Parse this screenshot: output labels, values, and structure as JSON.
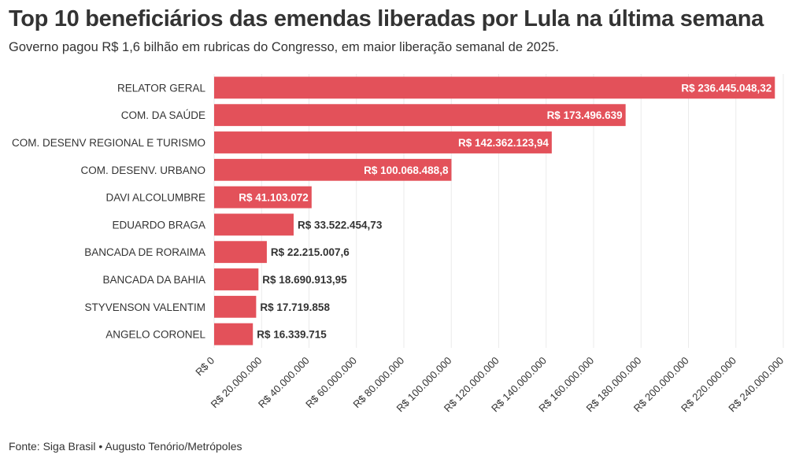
{
  "title": "Top 10 beneficiários das emendas liberadas por Lula na última semana",
  "subtitle": "Governo pagou R$ 1,6 bilhão em rubricas do Congresso, em maior liberação semanal de 2025.",
  "source": "Fonte: Siga Brasil • Augusto Tenório/Metrópoles",
  "colors": {
    "bar": "#e3515a",
    "text": "#333333",
    "grid": "#ebebeb",
    "label_inside": "#ffffff"
  },
  "chart_data": {
    "type": "bar",
    "orientation": "horizontal",
    "categories": [
      "RELATOR GERAL",
      "COM. DA SAÚDE",
      "COM. DESENV REGIONAL E TURISMO",
      "COM. DESENV. URBANO",
      "DAVI ALCOLUMBRE",
      "EDUARDO BRAGA",
      "BANCADA DE RORAIMA",
      "BANCADA DA BAHIA",
      "STYVENSON VALENTIM",
      "ANGELO CORONEL"
    ],
    "values": [
      236445048.32,
      173496639,
      142362123.94,
      100068488.8,
      41103072,
      33522454.73,
      22215007.6,
      18690913.95,
      17719858,
      16339715
    ],
    "value_labels": [
      "R$ 236.445.048,32",
      "R$ 173.496.639",
      "R$ 142.362.123,94",
      "R$ 100.068.488,8",
      "R$ 41.103.072",
      "R$ 33.522.454,73",
      "R$ 22.215.007,6",
      "R$ 18.690.913,95",
      "R$ 17.719.858",
      "R$ 16.339.715"
    ],
    "label_inside": [
      true,
      true,
      true,
      true,
      true,
      false,
      false,
      false,
      false,
      false
    ],
    "xlim": [
      0,
      240000000
    ],
    "x_ticks": [
      0,
      20000000,
      40000000,
      60000000,
      80000000,
      100000000,
      120000000,
      140000000,
      160000000,
      180000000,
      200000000,
      220000000,
      240000000
    ],
    "x_tick_labels": [
      "R$ 0",
      "R$ 20.000.000",
      "R$ 40.000.000",
      "R$ 60.000.000",
      "R$ 80.000.000",
      "R$ 100.000.000",
      "R$ 120.000.000",
      "R$ 140.000.000",
      "R$ 160.000.000",
      "R$ 180.000.000",
      "R$ 200.000.000",
      "R$ 220.000.000",
      "R$ 240.000.000"
    ],
    "grid": true,
    "xlabel": "",
    "ylabel": ""
  }
}
